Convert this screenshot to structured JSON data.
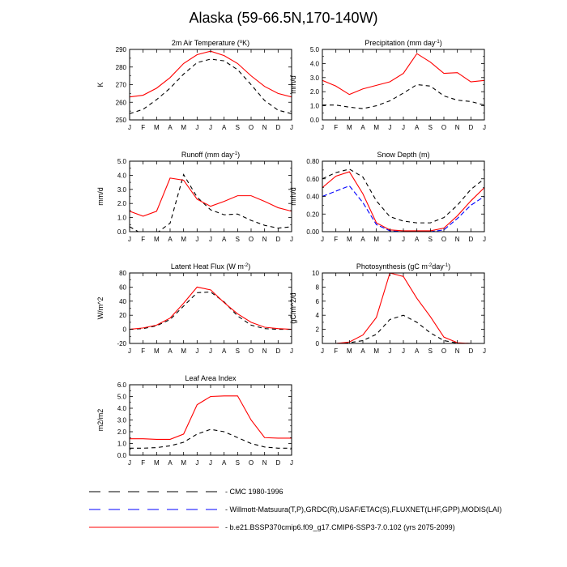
{
  "title": "Alaska (59-66.5N,170-140W)",
  "months": [
    "J",
    "F",
    "M",
    "A",
    "M",
    "J",
    "J",
    "A",
    "S",
    "O",
    "N",
    "D",
    "J"
  ],
  "colors": {
    "cmc": "#000000",
    "obs": "#0000ff",
    "model": "#ff0000"
  },
  "legend": [
    {
      "label": "CMC 1980-1996",
      "color": "#000000"
    },
    {
      "label": "Willmott-Matsuura(T,P),GRDC(R),USAF/ETAC(S),FLUXNET(LHF,GPP),MODIS(LAI)",
      "color": "#0000ff"
    },
    {
      "label": "b.e21.BSSP370cmip6.f09_g17.CMIP6-SSP3-7.0.102 (yrs 2075-2099)",
      "color": "#ff0000"
    }
  ],
  "chart_data": [
    {
      "type": "line",
      "title": {
        "pre": "2m Air Temperature (",
        "sup": "o",
        "post": "K)"
      },
      "ylabel": "K",
      "ylim": [
        250,
        290
      ],
      "yticks": [
        250,
        260,
        270,
        280,
        290
      ],
      "ytick_labels": [
        "250",
        "260",
        "270",
        "280",
        "290"
      ],
      "series": [
        {
          "key": "model",
          "values": [
            263,
            264,
            268,
            274,
            282,
            287,
            289,
            286.5,
            282,
            275,
            269,
            265,
            263
          ]
        },
        {
          "key": "cmc",
          "values": [
            253.5,
            256,
            261.5,
            268,
            276,
            282.5,
            284.5,
            283.5,
            278.5,
            270,
            261,
            255.5,
            253.5
          ]
        }
      ]
    },
    {
      "type": "line",
      "title": {
        "pre": "Precipitation (mm day",
        "sup": "-1",
        "post": ")"
      },
      "ylabel": "mm/d",
      "ylim": [
        0,
        5
      ],
      "yticks": [
        0,
        1,
        2,
        3,
        4,
        5
      ],
      "ytick_labels": [
        "0.0",
        "1.0",
        "2.0",
        "3.0",
        "4.0",
        "5.0"
      ],
      "series": [
        {
          "key": "model",
          "values": [
            2.8,
            2.4,
            1.8,
            2.2,
            2.45,
            2.7,
            3.3,
            4.7,
            4.1,
            3.3,
            3.35,
            2.7,
            2.8
          ]
        },
        {
          "key": "cmc",
          "values": [
            1.05,
            1.05,
            0.9,
            0.8,
            1.0,
            1.35,
            1.9,
            2.5,
            2.4,
            1.7,
            1.4,
            1.3,
            1.05
          ]
        }
      ]
    },
    {
      "type": "line",
      "title": {
        "pre": "Runoff (mm day",
        "sup": "-1",
        "post": ")"
      },
      "ylabel": "mm/d",
      "ylim": [
        0,
        5
      ],
      "yticks": [
        0,
        1,
        2,
        3,
        4,
        5
      ],
      "ytick_labels": [
        "0.0",
        "1.0",
        "2.0",
        "3.0",
        "4.0",
        "5.0"
      ],
      "series": [
        {
          "key": "model",
          "values": [
            1.45,
            1.1,
            1.45,
            3.8,
            3.65,
            2.3,
            1.8,
            2.15,
            2.55,
            2.55,
            2.15,
            1.7,
            1.45
          ]
        },
        {
          "key": "cmc",
          "values": [
            0.35,
            -0.2,
            -0.1,
            0.6,
            4.05,
            2.45,
            1.55,
            1.2,
            1.25,
            0.8,
            0.45,
            0.25,
            0.35
          ]
        }
      ]
    },
    {
      "type": "line",
      "title": {
        "pre": "Snow Depth (m)",
        "sup": "",
        "post": ""
      },
      "ylabel": "mm/d",
      "ylim": [
        0,
        0.8
      ],
      "yticks": [
        0,
        0.2,
        0.4,
        0.6,
        0.8
      ],
      "ytick_labels": [
        "0.00",
        "0.20",
        "0.40",
        "0.60",
        "0.80"
      ],
      "series": [
        {
          "key": "model",
          "values": [
            0.5,
            0.63,
            0.68,
            0.43,
            0.1,
            0.02,
            0.01,
            0.01,
            0.01,
            0.04,
            0.18,
            0.35,
            0.5
          ]
        },
        {
          "key": "cmc",
          "values": [
            0.6,
            0.67,
            0.71,
            0.62,
            0.35,
            0.17,
            0.12,
            0.1,
            0.1,
            0.16,
            0.3,
            0.48,
            0.6
          ]
        },
        {
          "key": "obs",
          "values": [
            0.4,
            0.46,
            0.52,
            0.33,
            0.08,
            0.01,
            0.0,
            0.0,
            0.0,
            0.02,
            0.15,
            0.3,
            0.4
          ]
        }
      ]
    },
    {
      "type": "line",
      "title": {
        "pre": "Latent Heat Flux (W m",
        "sup": "-2",
        "post": ")"
      },
      "ylabel": "W/m^2",
      "ylim": [
        -20,
        80
      ],
      "yticks": [
        -20,
        0,
        20,
        40,
        60,
        80
      ],
      "ytick_labels": [
        "-20",
        "0",
        "20",
        "40",
        "60",
        "80"
      ],
      "series": [
        {
          "key": "model",
          "values": [
            0,
            2,
            6,
            16,
            37,
            60,
            56,
            38,
            22,
            10,
            3,
            1,
            0
          ]
        },
        {
          "key": "cmc",
          "values": [
            0,
            1,
            5,
            14,
            33,
            52,
            53,
            39,
            19,
            6,
            1,
            0,
            0
          ]
        }
      ]
    },
    {
      "type": "line",
      "title": {
        "pre": "Photosynthesis (gC m",
        "sup": "-2",
        "post": "day",
        "sup2": "-1",
        "post2": ")"
      },
      "ylabel": "gC/m^2/d",
      "ylim": [
        0,
        10
      ],
      "yticks": [
        0,
        2,
        4,
        6,
        8,
        10
      ],
      "ytick_labels": [
        "0",
        "2",
        "4",
        "6",
        "8",
        "10"
      ],
      "series": [
        {
          "key": "model",
          "values": [
            0,
            0,
            0.2,
            1.2,
            3.7,
            10,
            9.5,
            6.4,
            3.8,
            0.9,
            0.1,
            0,
            0
          ]
        },
        {
          "key": "cmc",
          "values": [
            0,
            0,
            0.1,
            0.4,
            1.3,
            3.4,
            4,
            3,
            1.5,
            0.4,
            0.05,
            0,
            0
          ]
        }
      ]
    },
    {
      "type": "line",
      "title": {
        "pre": "Leaf Area Index",
        "sup": "",
        "post": ""
      },
      "ylabel": "m2/m2",
      "ylim": [
        0,
        6
      ],
      "yticks": [
        0,
        1,
        2,
        3,
        4,
        5,
        6
      ],
      "ytick_labels": [
        "0.0",
        "1.0",
        "2.0",
        "3.0",
        "4.0",
        "5.0",
        "6.0"
      ],
      "series": [
        {
          "key": "model",
          "values": [
            1.4,
            1.4,
            1.35,
            1.35,
            1.8,
            4.3,
            5.0,
            5.05,
            5.05,
            3.0,
            1.5,
            1.45,
            1.45
          ]
        },
        {
          "key": "cmc",
          "values": [
            0.6,
            0.6,
            0.65,
            0.8,
            1.1,
            1.8,
            2.2,
            2.0,
            1.5,
            1.0,
            0.7,
            0.6,
            0.6
          ]
        }
      ]
    }
  ]
}
